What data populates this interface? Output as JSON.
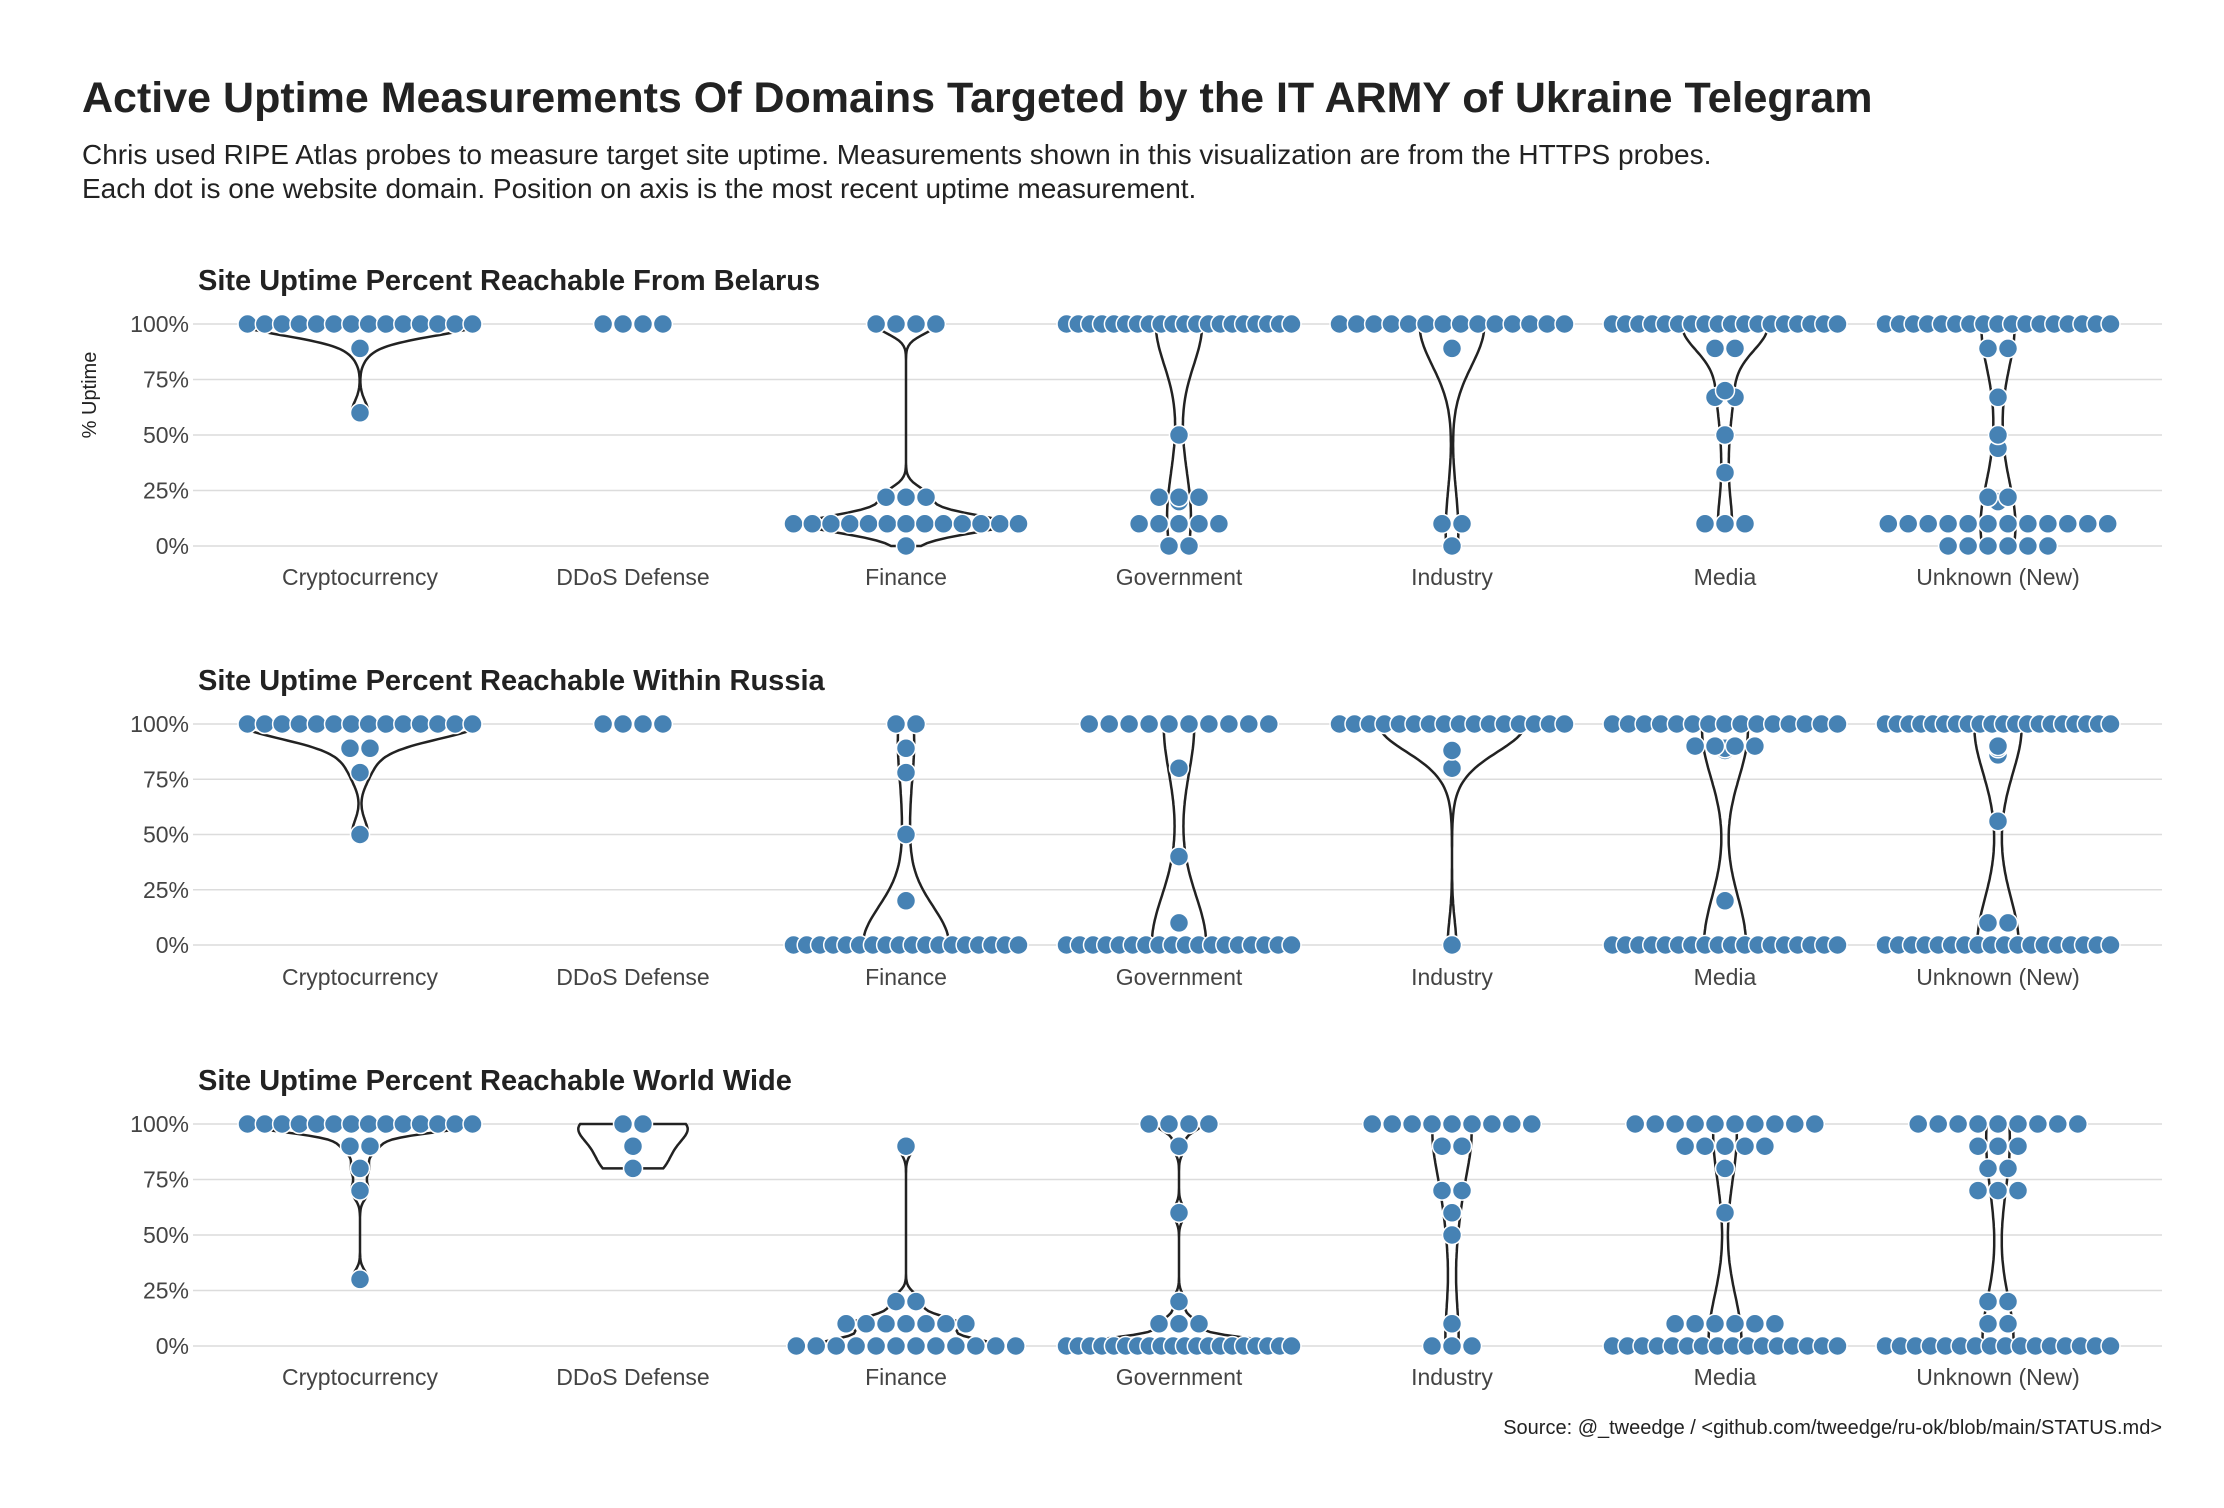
{
  "title": "Active Uptime Measurements Of Domains Targeted by the IT ARMY of Ukraine Telegram",
  "subtitle_lines": [
    "Chris used RIPE Atlas probes to measure target site uptime. Measurements shown in this visualization are from the HTTPS probes.",
    "Each dot is one website domain. Position on axis is the most recent uptime measurement."
  ],
  "source": "Source: @_tweedge / <github.com/tweedge/ru-ok/blob/main/STATUS.md>",
  "colors": {
    "dot": "#4682b4",
    "dot_stroke": "#ffffff",
    "violin": "#222222",
    "grid": "#dcdcdc"
  },
  "chart_data": [
    {
      "type": "violin+beeswarm",
      "title": "Site Uptime Percent Reachable From Belarus",
      "ylabel": "% Uptime",
      "ylim": [
        0,
        100
      ],
      "yticks": [
        "100%",
        "75%",
        "50%",
        "25%",
        "0%"
      ],
      "grid": true,
      "categories": [
        "Cryptocurrency",
        "DDoS Defense",
        "Finance",
        "Government",
        "Industry",
        "Media",
        "Unknown (New)"
      ],
      "series": [
        {
          "category": "Cryptocurrency",
          "values": [
            100,
            100,
            100,
            100,
            100,
            100,
            100,
            100,
            100,
            100,
            100,
            100,
            100,
            100,
            89,
            60
          ]
        },
        {
          "category": "DDoS Defense",
          "values": [
            100,
            100,
            100,
            100
          ]
        },
        {
          "category": "Finance",
          "values": [
            100,
            100,
            100,
            100,
            22,
            22,
            22,
            10,
            10,
            10,
            10,
            10,
            10,
            10,
            10,
            10,
            10,
            10,
            10,
            10,
            0
          ]
        },
        {
          "category": "Government",
          "values": [
            100,
            100,
            100,
            100,
            100,
            100,
            100,
            100,
            100,
            100,
            100,
            100,
            100,
            100,
            100,
            100,
            100,
            100,
            100,
            100,
            50,
            22,
            22,
            22,
            20,
            10,
            10,
            10,
            10,
            10,
            0,
            0
          ]
        },
        {
          "category": "Industry",
          "values": [
            100,
            100,
            100,
            100,
            100,
            100,
            100,
            100,
            100,
            100,
            100,
            100,
            100,
            100,
            89,
            10,
            10,
            0
          ]
        },
        {
          "category": "Media",
          "values": [
            100,
            100,
            100,
            100,
            100,
            100,
            100,
            100,
            100,
            100,
            100,
            100,
            100,
            100,
            100,
            100,
            100,
            100,
            89,
            89,
            70,
            67,
            67,
            50,
            33,
            10,
            10,
            10
          ]
        },
        {
          "category": "Unknown (New)",
          "values": [
            100,
            100,
            100,
            100,
            100,
            100,
            100,
            100,
            100,
            100,
            100,
            100,
            100,
            100,
            100,
            100,
            100,
            89,
            89,
            67,
            50,
            44,
            22,
            22,
            20,
            10,
            10,
            10,
            10,
            10,
            10,
            10,
            10,
            10,
            10,
            10,
            10,
            0,
            0,
            0,
            0,
            0,
            0
          ]
        }
      ]
    },
    {
      "type": "violin+beeswarm",
      "title": "Site Uptime Percent Reachable Within Russia",
      "ylim": [
        0,
        100
      ],
      "yticks": [
        "100%",
        "75%",
        "50%",
        "25%",
        "0%"
      ],
      "grid": true,
      "categories": [
        "Cryptocurrency",
        "DDoS Defense",
        "Finance",
        "Government",
        "Industry",
        "Media",
        "Unknown (New)"
      ],
      "series": [
        {
          "category": "Cryptocurrency",
          "values": [
            100,
            100,
            100,
            100,
            100,
            100,
            100,
            100,
            100,
            100,
            100,
            100,
            100,
            100,
            89,
            89,
            78,
            50
          ]
        },
        {
          "category": "DDoS Defense",
          "values": [
            100,
            100,
            100,
            100
          ]
        },
        {
          "category": "Finance",
          "values": [
            100,
            100,
            89,
            78,
            50,
            20,
            0,
            0,
            0,
            0,
            0,
            0,
            0,
            0,
            0,
            0,
            0,
            0,
            0,
            0,
            0,
            0,
            0,
            0
          ]
        },
        {
          "category": "Government",
          "values": [
            100,
            100,
            100,
            100,
            100,
            100,
            100,
            100,
            100,
            100,
            80,
            40,
            10,
            0,
            0,
            0,
            0,
            0,
            0,
            0,
            0,
            0,
            0,
            0,
            0,
            0,
            0,
            0,
            0,
            0,
            0
          ]
        },
        {
          "category": "Industry",
          "values": [
            100,
            100,
            100,
            100,
            100,
            100,
            100,
            100,
            100,
            100,
            100,
            100,
            100,
            100,
            100,
            100,
            88,
            80,
            0
          ]
        },
        {
          "category": "Media",
          "values": [
            100,
            100,
            100,
            100,
            100,
            100,
            100,
            100,
            100,
            100,
            100,
            100,
            100,
            100,
            100,
            90,
            90,
            90,
            90,
            89,
            88,
            20,
            0,
            0,
            0,
            0,
            0,
            0,
            0,
            0,
            0,
            0,
            0,
            0,
            0,
            0,
            0,
            0,
            0,
            0
          ]
        },
        {
          "category": "Unknown (New)",
          "values": [
            100,
            100,
            100,
            100,
            100,
            100,
            100,
            100,
            100,
            100,
            100,
            100,
            100,
            100,
            100,
            100,
            100,
            100,
            100,
            100,
            90,
            89,
            86,
            56,
            10,
            10,
            0,
            0,
            0,
            0,
            0,
            0,
            0,
            0,
            0,
            0,
            0,
            0,
            0,
            0,
            0,
            0,
            0,
            0
          ]
        }
      ]
    },
    {
      "type": "violin+beeswarm",
      "title": "Site Uptime Percent Reachable World Wide",
      "ylim": [
        0,
        100
      ],
      "yticks": [
        "100%",
        "75%",
        "50%",
        "25%",
        "0%"
      ],
      "grid": true,
      "categories": [
        "Cryptocurrency",
        "DDoS Defense",
        "Finance",
        "Government",
        "Industry",
        "Media",
        "Unknown (New)"
      ],
      "series": [
        {
          "category": "Cryptocurrency",
          "values": [
            100,
            100,
            100,
            100,
            100,
            100,
            100,
            100,
            100,
            100,
            100,
            100,
            100,
            100,
            90,
            90,
            80,
            70,
            30
          ]
        },
        {
          "category": "DDoS Defense",
          "values": [
            100,
            100,
            90,
            80
          ]
        },
        {
          "category": "Finance",
          "values": [
            90,
            20,
            20,
            10,
            10,
            10,
            10,
            10,
            10,
            10,
            0,
            0,
            0,
            0,
            0,
            0,
            0,
            0,
            0,
            0,
            0,
            0
          ]
        },
        {
          "category": "Government",
          "values": [
            100,
            100,
            100,
            100,
            90,
            60,
            20,
            10,
            10,
            10,
            0,
            0,
            0,
            0,
            0,
            0,
            0,
            0,
            0,
            0,
            0,
            0,
            0,
            0,
            0,
            0,
            0,
            0,
            0,
            0
          ]
        },
        {
          "category": "Industry",
          "values": [
            100,
            100,
            100,
            100,
            100,
            100,
            100,
            100,
            100,
            90,
            90,
            70,
            70,
            60,
            50,
            10,
            0,
            0,
            0
          ]
        },
        {
          "category": "Media",
          "values": [
            100,
            100,
            100,
            100,
            100,
            100,
            100,
            100,
            100,
            100,
            90,
            90,
            90,
            90,
            90,
            80,
            60,
            10,
            10,
            10,
            10,
            10,
            10,
            0,
            0,
            0,
            0,
            0,
            0,
            0,
            0,
            0,
            0,
            0,
            0,
            0,
            0,
            0,
            0
          ]
        },
        {
          "category": "Unknown (New)",
          "values": [
            100,
            100,
            100,
            100,
            100,
            100,
            100,
            100,
            100,
            90,
            90,
            90,
            80,
            80,
            70,
            70,
            70,
            20,
            20,
            10,
            10,
            0,
            0,
            0,
            0,
            0,
            0,
            0,
            0,
            0,
            0,
            0,
            0,
            0,
            0,
            0,
            0
          ]
        }
      ]
    }
  ]
}
